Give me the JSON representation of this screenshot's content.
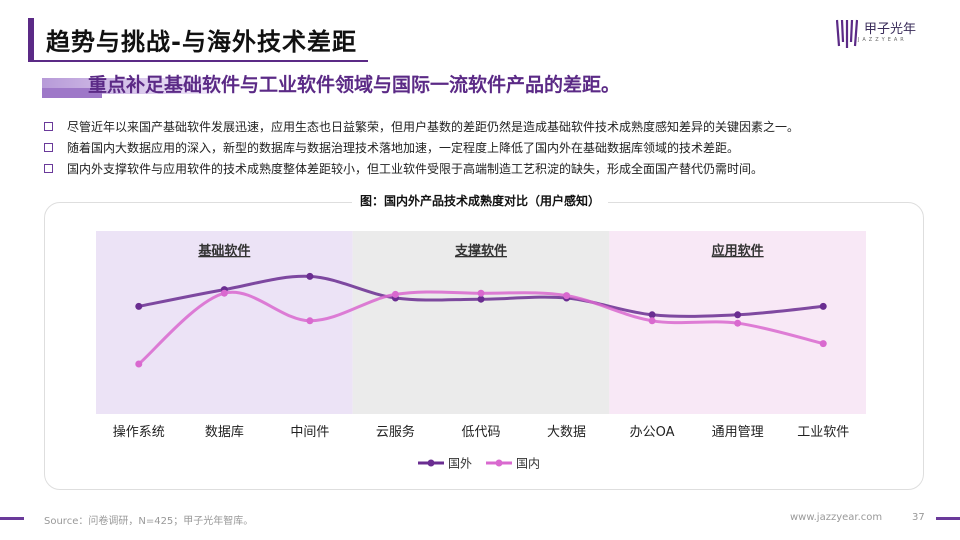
{
  "header": {
    "title": "趋势与挑战-与海外技术差距",
    "logo_text": "甲子光年",
    "logo_sub": "JAZZYEAR"
  },
  "subtitle": "重点补足基础软件与工业软件领域与国际一流软件产品的差距。",
  "bullets": [
    "尽管近年以来国产基础软件发展迅速，应用生态也日益繁荣，但用户基数的差距仍然是造成基础软件技术成熟度感知差异的关键因素之一。",
    "随着国内大数据应用的深入，新型的数据库与数据治理技术落地加速，一定程度上降低了国内外在基础数据库领域的技术差距。",
    "国内外支撑软件与应用软件的技术成熟度整体差距较小，但工业软件受限于高端制造工艺积淀的缺失，形成全面国产替代仍需时间。"
  ],
  "chart_data": {
    "type": "line",
    "title": "图：国内外产品技术成熟度对比（用户感知）",
    "categories": [
      "操作系统",
      "数据库",
      "中间件",
      "云服务",
      "低代码",
      "大数据",
      "办公OA",
      "通用管理",
      "工业软件"
    ],
    "groups": [
      {
        "label": "基础软件",
        "categories": [
          "操作系统",
          "数据库",
          "中间件"
        ],
        "color": "#ece3f6"
      },
      {
        "label": "支撑软件",
        "categories": [
          "云服务",
          "低代码",
          "大数据"
        ],
        "color": "#ebebeb"
      },
      {
        "label": "应用软件",
        "categories": [
          "办公OA",
          "通用管理",
          "工业软件"
        ],
        "color": "#f8e8f6"
      }
    ],
    "series": [
      {
        "name": "国外",
        "color": "#6a2d91",
        "values": [
          58,
          72,
          83,
          65,
          64,
          65,
          51,
          51,
          58
        ]
      },
      {
        "name": "国内",
        "color": "#d969cf",
        "values": [
          10,
          69,
          46,
          68,
          69,
          67,
          46,
          44,
          27
        ]
      }
    ],
    "ylim": [
      0,
      100
    ],
    "legend": "bottom-center",
    "grid": false
  },
  "footer": {
    "source": "Source：问卷调研，N=425；甲子光年智库。",
    "site": "www.jazzyear.com",
    "page": "37"
  }
}
